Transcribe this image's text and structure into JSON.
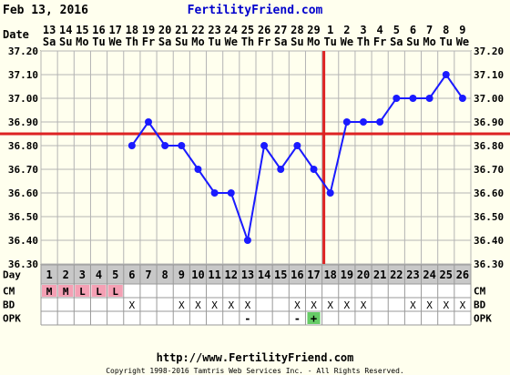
{
  "header": {
    "chart_date": "Feb 13, 2016",
    "brand": "FertilityFriend.com"
  },
  "footer": {
    "url": "http://www.FertilityFriend.com",
    "copyright": "Copyright 1998-2016 Tamtris Web Services Inc. - All Rights Reserved."
  },
  "row_labels": {
    "date": "Date",
    "day": "Day",
    "cm": "CM",
    "bd": "BD",
    "opk": "OPK"
  },
  "colors": {
    "line": "#1a1aff",
    "coverline": "#dd2222",
    "ovulation_line": "#dd2222",
    "menses_cell": "#f4a0b4",
    "opk_positive_cell": "#66cc66",
    "day_row_bg": "#c8c8c8",
    "plot_bg": "#ffffee",
    "grid": "#b4b4b4"
  },
  "chart_data": {
    "type": "line",
    "dates": [
      "13",
      "14",
      "15",
      "16",
      "17",
      "18",
      "19",
      "20",
      "21",
      "22",
      "23",
      "24",
      "25",
      "26",
      "27",
      "28",
      "29",
      "1",
      "2",
      "3",
      "4",
      "5",
      "6",
      "7",
      "8",
      "9"
    ],
    "weekdays": [
      "Sa",
      "Su",
      "Mo",
      "Tu",
      "We",
      "Th",
      "Fr",
      "Sa",
      "Su",
      "Mo",
      "Tu",
      "We",
      "Th",
      "Fr",
      "Sa",
      "Su",
      "Mo",
      "Tu",
      "We",
      "Th",
      "Fr",
      "Sa",
      "Su",
      "Mo",
      "Tu",
      "We"
    ],
    "cycle_days": [
      "1",
      "2",
      "3",
      "4",
      "5",
      "6",
      "7",
      "8",
      "9",
      "10",
      "11",
      "12",
      "13",
      "14",
      "15",
      "16",
      "17",
      "18",
      "19",
      "20",
      "21",
      "22",
      "23",
      "24",
      "25",
      "26"
    ],
    "temperatures": [
      null,
      null,
      null,
      null,
      null,
      36.8,
      36.9,
      36.8,
      36.8,
      36.7,
      36.6,
      36.6,
      36.4,
      36.8,
      36.7,
      36.8,
      36.7,
      36.6,
      36.9,
      36.9,
      36.9,
      37.0,
      37.0,
      37.0,
      37.1,
      37.0
    ],
    "y_ticks": [
      "37.20",
      "37.10",
      "37.00",
      "36.90",
      "36.80",
      "36.70",
      "36.60",
      "36.50",
      "36.40",
      "36.30"
    ],
    "ylim": [
      36.3,
      37.2
    ],
    "coverline": 36.85,
    "ovulation_day": 18,
    "grid": true,
    "cm": [
      "M",
      "M",
      "L",
      "L",
      "L",
      "",
      "",
      "",
      "",
      "",
      "",
      "",
      "",
      "",
      "",
      "",
      "",
      "",
      "",
      "",
      "",
      "",
      "",
      "",
      "",
      ""
    ],
    "bd": [
      "",
      "",
      "",
      "",
      "",
      "X",
      "",
      "",
      "X",
      "X",
      "X",
      "X",
      "X",
      "",
      "",
      "X",
      "X",
      "X",
      "X",
      "X",
      "",
      "",
      "X",
      "X",
      "X",
      "X"
    ],
    "opk": [
      "",
      "",
      "",
      "",
      "",
      "",
      "",
      "",
      "",
      "",
      "",
      "",
      "-",
      "",
      "",
      "-",
      "+",
      "",
      "",
      "",
      "",
      "",
      "",
      "",
      "",
      ""
    ]
  }
}
